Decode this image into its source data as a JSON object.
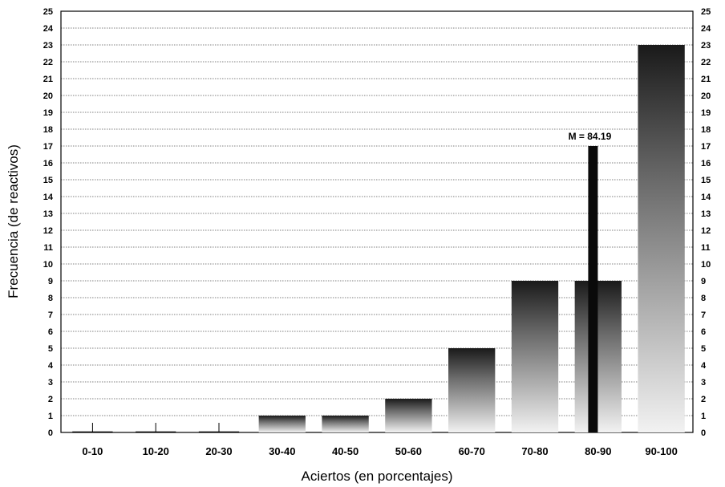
{
  "chart_data": {
    "type": "bar",
    "title": "",
    "xlabel": "Aciertos (en porcentajes)",
    "ylabel": "Frecuencia (de reactivos)",
    "ylim": [
      0,
      25
    ],
    "yticks": [
      0,
      1,
      2,
      3,
      4,
      5,
      6,
      7,
      8,
      9,
      10,
      11,
      12,
      13,
      14,
      15,
      16,
      17,
      18,
      19,
      20,
      21,
      22,
      23,
      24,
      25
    ],
    "categories": [
      "0-10",
      "10-20",
      "20-30",
      "30-40",
      "40-50",
      "50-60",
      "60-70",
      "70-80",
      "80-90",
      "90-100"
    ],
    "values": [
      0,
      0,
      0,
      1,
      1,
      2,
      5,
      9,
      9,
      23
    ],
    "grid": true,
    "mean_marker": {
      "label": "M = 84.19",
      "x": 84.19,
      "height": 17
    }
  }
}
